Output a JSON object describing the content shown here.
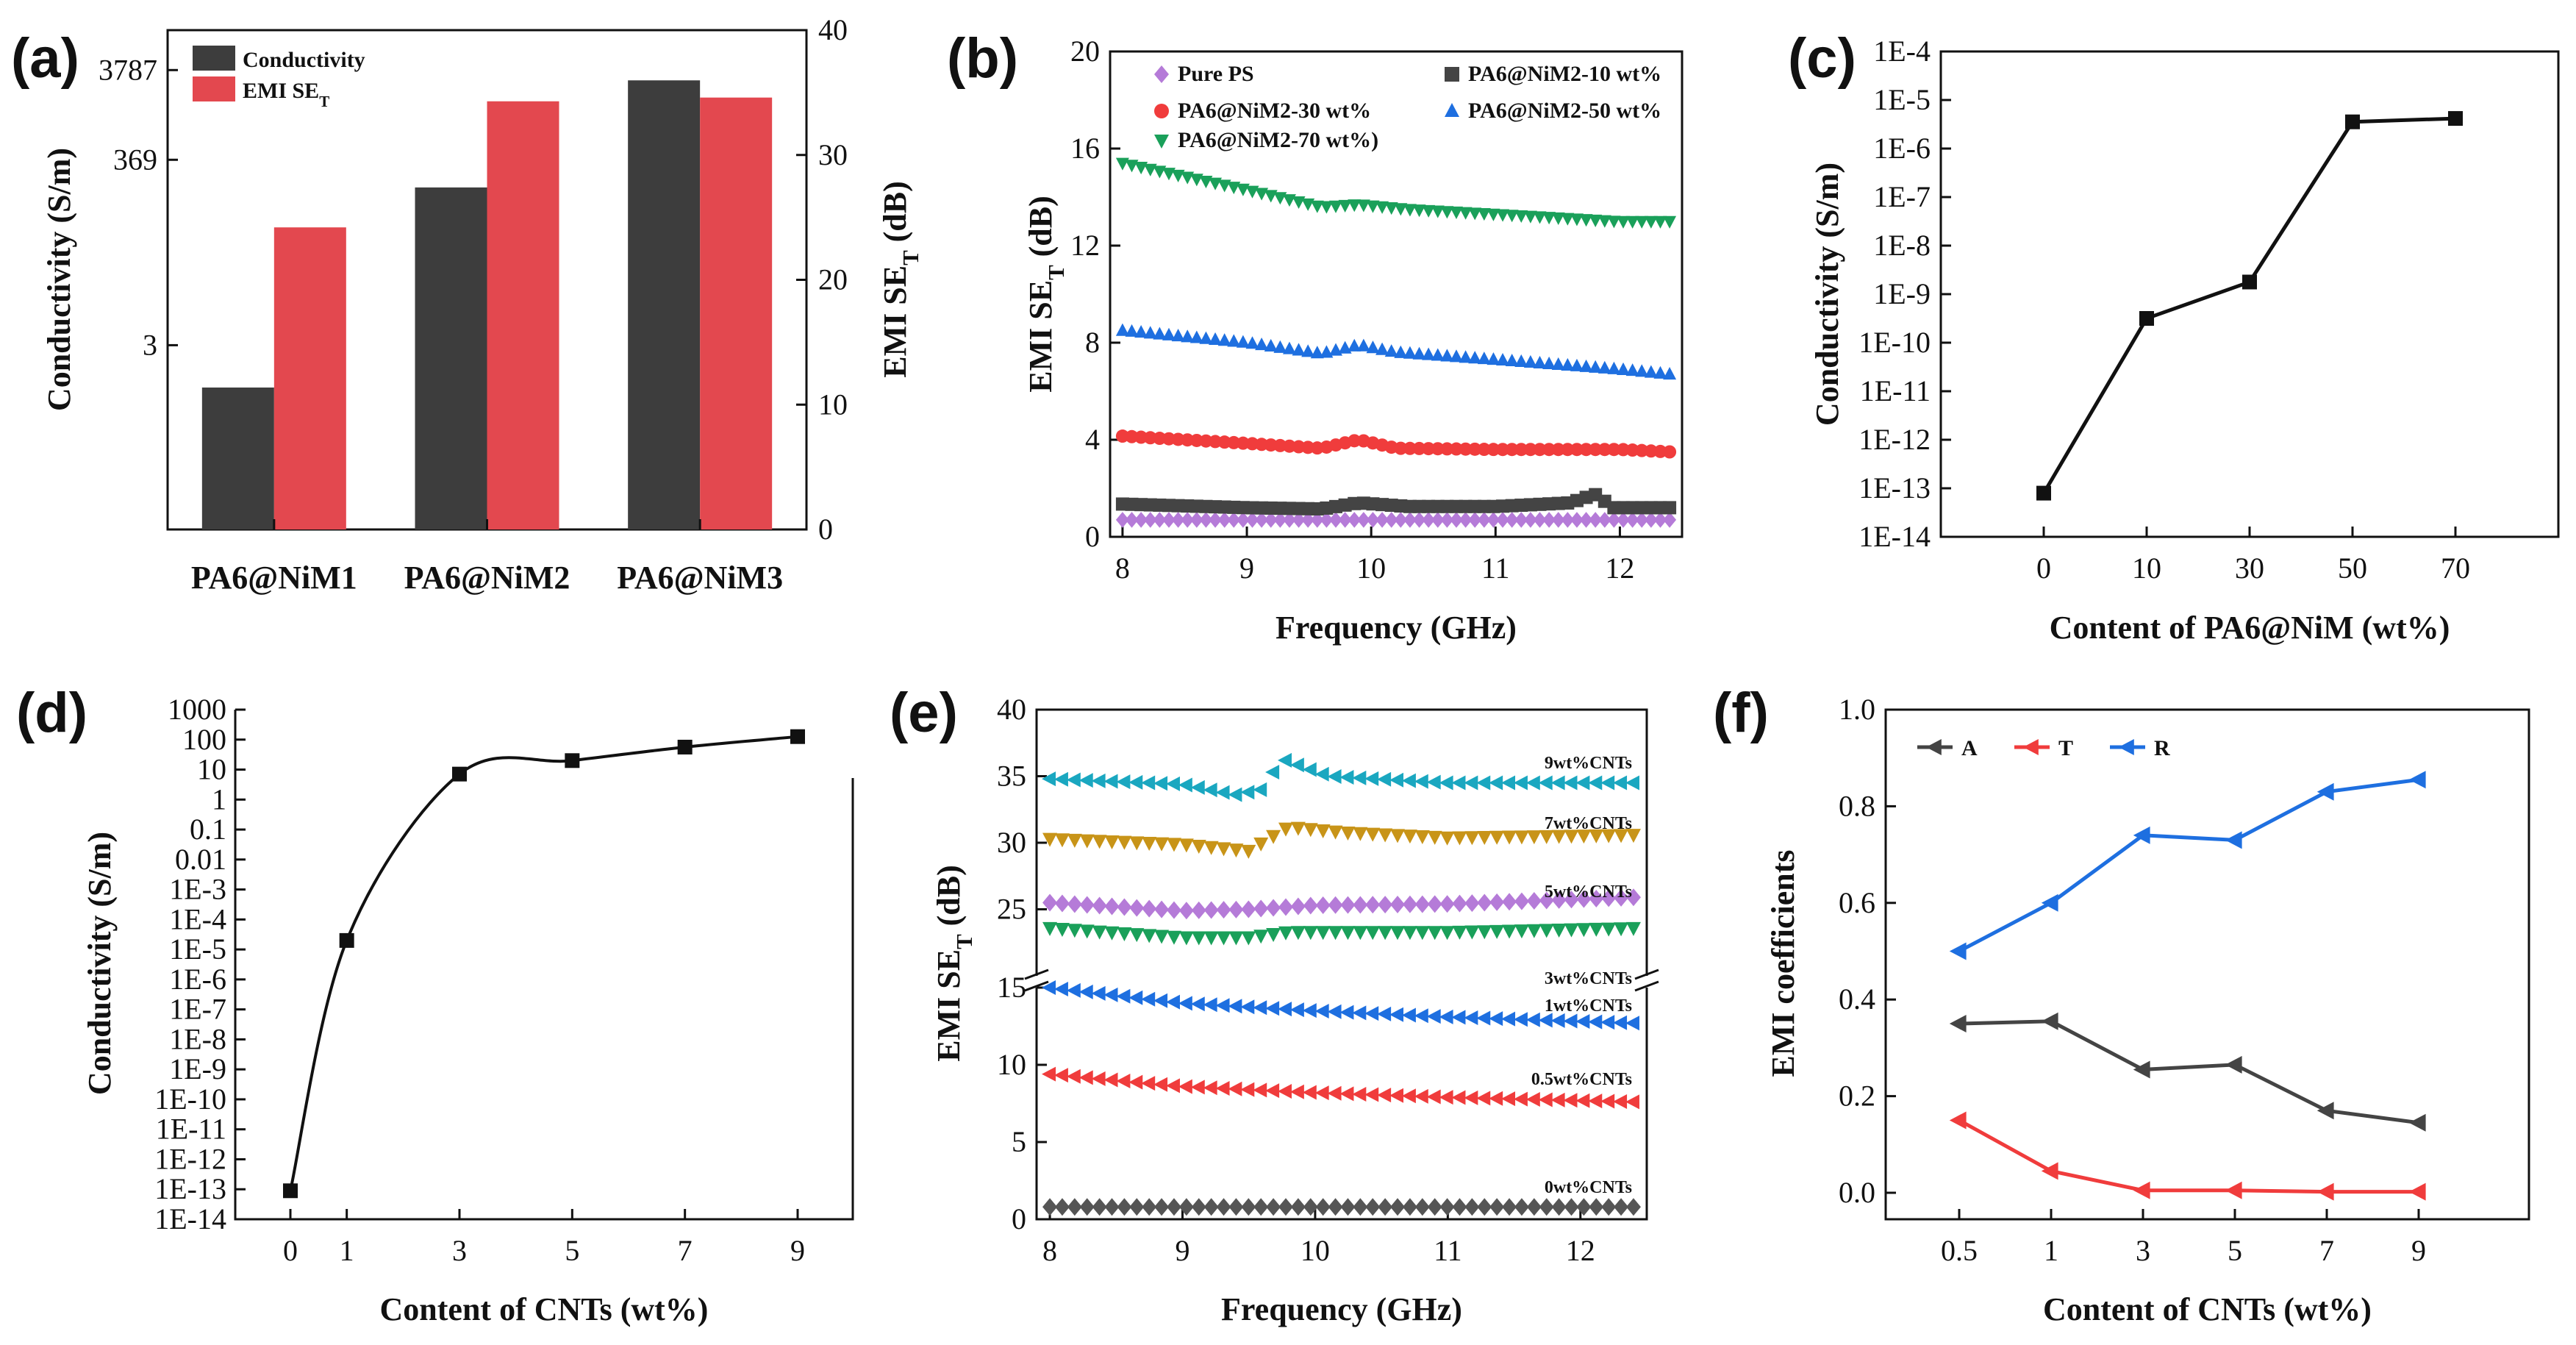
{
  "chart_data": [
    {
      "panel": "(a)",
      "type": "bar",
      "categories": [
        "PA6@NiM1",
        "PA6@NiM2",
        "PA6@NiM3"
      ],
      "series": [
        {
          "name": "Conductivity",
          "axis": "left",
          "color": "#3d3d3d",
          "values": [
            1,
            180,
            2900
          ]
        },
        {
          "name": "EMI SE_T",
          "axis": "right",
          "color": "#e3484f",
          "values": [
            24.2,
            34.3,
            34.6
          ]
        }
      ],
      "ylabel": "Conductivity (S/m)",
      "ytick_labels": [
        "3",
        "369",
        "3787"
      ],
      "y2label": "EMI SE_T (dB)",
      "y2lim": [
        0,
        40
      ],
      "y2ticks": [
        0,
        10,
        20,
        30,
        40
      ]
    },
    {
      "panel": "(b)",
      "type": "scatter",
      "xlabel": "Frequency (GHz)",
      "ylabel": "EMI SE_T (dB)",
      "xlim": [
        7.9,
        12.5
      ],
      "ylim": [
        0,
        20
      ],
      "xticks": [
        8,
        9,
        10,
        11,
        12
      ],
      "yticks": [
        0,
        4,
        8,
        12,
        16,
        20
      ],
      "series": [
        {
          "name": "Pure PS",
          "color": "#b57bd8",
          "marker": "diamond",
          "points": [
            [
              8,
              0.7
            ],
            [
              12.4,
              0.7
            ]
          ]
        },
        {
          "name": "PA6@NiM2-10 wt%",
          "color": "#444444",
          "marker": "square",
          "points": [
            [
              8,
              1.35
            ],
            [
              9,
              1.2
            ],
            [
              9.6,
              1.15
            ],
            [
              9.9,
              1.4
            ],
            [
              10.3,
              1.25
            ],
            [
              11,
              1.25
            ],
            [
              11.6,
              1.4
            ],
            [
              11.8,
              1.75
            ],
            [
              11.95,
              1.2
            ],
            [
              12.4,
              1.2
            ]
          ]
        },
        {
          "name": "PA6@NiM2-30 wt%",
          "color": "#f03c3c",
          "marker": "circle",
          "points": [
            [
              8,
              4.15
            ],
            [
              9,
              3.85
            ],
            [
              9.6,
              3.65
            ],
            [
              9.9,
              4.0
            ],
            [
              10.2,
              3.65
            ],
            [
              11,
              3.6
            ],
            [
              12,
              3.6
            ],
            [
              12.4,
              3.5
            ]
          ]
        },
        {
          "name": "PA6@NiM2-50 wt%",
          "color": "#1e6fe0",
          "marker": "triangle-up",
          "points": [
            [
              8,
              8.5
            ],
            [
              9,
              8.0
            ],
            [
              9.6,
              7.55
            ],
            [
              9.9,
              7.9
            ],
            [
              10.2,
              7.6
            ],
            [
              11,
              7.3
            ],
            [
              12,
              6.9
            ],
            [
              12.4,
              6.7
            ]
          ]
        },
        {
          "name": "PA6@NiM2-70 wt%",
          "color": "#1aa05a",
          "marker": "triangle-down",
          "points": [
            [
              8,
              15.4
            ],
            [
              9,
              14.3
            ],
            [
              9.6,
              13.6
            ],
            [
              9.9,
              13.7
            ],
            [
              10.3,
              13.5
            ],
            [
              11,
              13.3
            ],
            [
              12,
              13.0
            ],
            [
              12.4,
              13.0
            ]
          ]
        }
      ],
      "legend": [
        "Pure PS",
        "PA6@NiM2-10 wt%",
        "PA6@NiM2-30 wt%",
        "PA6@NiM2-50 wt%",
        "PA6@NiM2-70 wt%)"
      ]
    },
    {
      "panel": "(c)",
      "type": "line",
      "xlabel": "Content of PA6@NiM (wt%)",
      "ylabel": "Conductivity (S/m)",
      "categories": [
        "0",
        "10",
        "30",
        "50",
        "70"
      ],
      "values_log10": [
        -13.1,
        -9.5,
        -8.75,
        -5.45,
        -5.38
      ],
      "ylim_log10": [
        -14,
        -4
      ],
      "ytick_labels": [
        "1E-14",
        "1E-13",
        "1E-12",
        "1E-11",
        "1E-10",
        "1E-9",
        "1E-8",
        "1E-7",
        "1E-6",
        "1E-5",
        "1E-4"
      ]
    },
    {
      "panel": "(d)",
      "type": "line",
      "xlabel": "Content of CNTs (wt%)",
      "ylabel": "Conductivity (S/m)",
      "x": [
        0,
        1,
        3,
        5,
        7,
        9
      ],
      "values_log10": [
        -13.05,
        -4.7,
        0.85,
        1.3,
        1.75,
        2.1
      ],
      "ylim_log10": [
        -14,
        3
      ],
      "ytick_labels": [
        "1E-14",
        "1E-13",
        "1E-12",
        "1E-11",
        "1E-10",
        "1E-9",
        "1E-8",
        "1E-7",
        "1E-6",
        "1E-5",
        "1E-4",
        "1E-3",
        "0.01",
        "0.1",
        "1",
        "10",
        "100",
        "1000"
      ]
    },
    {
      "panel": "(e)",
      "type": "scatter",
      "xlabel": "Frequency (GHz)",
      "ylabel": "EMI SE_T (dB)",
      "xlim": [
        7.9,
        12.5
      ],
      "xticks": [
        8,
        9,
        10,
        11,
        12
      ],
      "y_break": [
        15,
        20
      ],
      "lower_yticks": [
        0,
        5,
        10,
        15
      ],
      "upper_yticks": [
        25,
        30,
        35,
        40
      ],
      "series": [
        {
          "name": "0wt%CNTs",
          "color": "#555555",
          "marker": "diamond",
          "points": [
            [
              8,
              0.8
            ],
            [
              12.4,
              0.8
            ]
          ]
        },
        {
          "name": "0.5wt%CNTs",
          "color": "#f03c3c",
          "marker": "triangle-left",
          "points": [
            [
              8,
              9.4
            ],
            [
              9,
              8.6
            ],
            [
              10,
              8.2
            ],
            [
              11,
              7.9
            ],
            [
              12.4,
              7.6
            ]
          ]
        },
        {
          "name": "1wt%CNTs",
          "color": "#1e6fe0",
          "marker": "triangle-left",
          "points": [
            [
              8,
              15.0
            ],
            [
              9,
              14.0
            ],
            [
              10,
              13.5
            ],
            [
              11,
              13.1
            ],
            [
              12.4,
              12.7
            ]
          ]
        },
        {
          "name": "3wt%CNTs",
          "color": "#1aa05a",
          "marker": "triangle-down",
          "points": [
            [
              8,
              23.6
            ],
            [
              9,
              22.9
            ],
            [
              9.5,
              22.9
            ],
            [
              9.8,
              23.3
            ],
            [
              11,
              23.3
            ],
            [
              12.4,
              23.6
            ]
          ]
        },
        {
          "name": "5wt%CNTs",
          "color": "#b57bd8",
          "marker": "diamond",
          "points": [
            [
              8,
              25.5
            ],
            [
              9,
              24.9
            ],
            [
              9.5,
              25.0
            ],
            [
              10,
              25.3
            ],
            [
              11,
              25.4
            ],
            [
              12.4,
              25.9
            ]
          ]
        },
        {
          "name": "7wt%CNTs",
          "color": "#c89418",
          "marker": "triangle-down",
          "points": [
            [
              8,
              30.3
            ],
            [
              9,
              29.9
            ],
            [
              9.5,
              29.4
            ],
            [
              9.8,
              31.2
            ],
            [
              10.2,
              30.8
            ],
            [
              11,
              30.4
            ],
            [
              12.4,
              30.6
            ]
          ]
        },
        {
          "name": "9wt%CNTs",
          "color": "#1aa7c0",
          "marker": "triangle-left",
          "points": [
            [
              8,
              34.8
            ],
            [
              9,
              34.4
            ],
            [
              9.4,
              33.6
            ],
            [
              9.6,
              34.0
            ],
            [
              9.75,
              36.3
            ],
            [
              10.1,
              35.0
            ],
            [
              11,
              34.5
            ],
            [
              12.4,
              34.5
            ]
          ]
        }
      ]
    },
    {
      "panel": "(f)",
      "type": "line",
      "xlabel": "Content of CNTs (wt%)",
      "ylabel": "EMI coefficients",
      "categories": [
        "0.5",
        "1",
        "3",
        "5",
        "7",
        "9"
      ],
      "ylim": [
        0,
        1
      ],
      "yticks": [
        "0.0",
        "0.2",
        "0.4",
        "0.6",
        "0.8",
        "1.0"
      ],
      "series": [
        {
          "name": "A",
          "color": "#444444",
          "values": [
            0.35,
            0.355,
            0.255,
            0.265,
            0.17,
            0.145
          ]
        },
        {
          "name": "T",
          "color": "#f03c3c",
          "values": [
            0.15,
            0.045,
            0.005,
            0.005,
            0.002,
            0.002
          ]
        },
        {
          "name": "R",
          "color": "#1e6fe0",
          "values": [
            0.5,
            0.6,
            0.74,
            0.73,
            0.83,
            0.855
          ]
        }
      ]
    }
  ]
}
